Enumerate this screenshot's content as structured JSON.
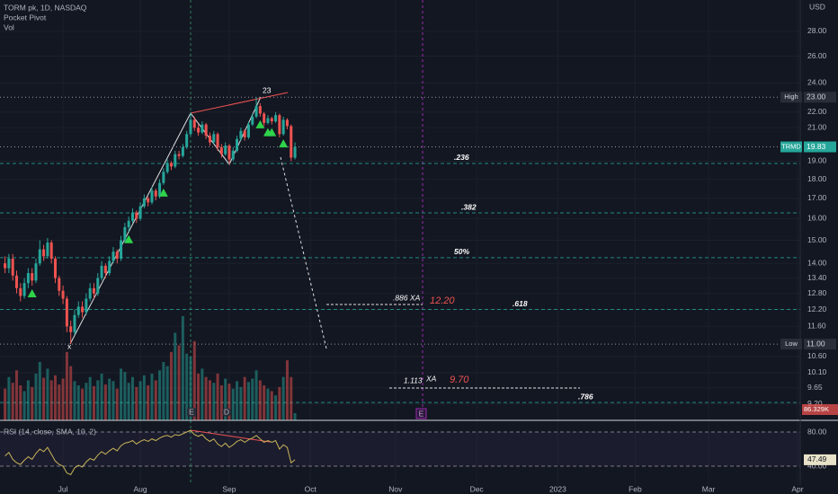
{
  "chart_data": {
    "type": "candlestick",
    "title": "TORM pk, 1D, NASDAQ",
    "subtitle": "Pocket Pivot",
    "volume_title": "Vol",
    "currency": "USD",
    "log_scale": true,
    "grid": true,
    "up_color": "#26a69a",
    "down_color": "#ef5350",
    "xlim": [
      -16.3,
      190.7
    ],
    "ylim": [
      8.76,
      30.75
    ],
    "xticks": [
      {
        "value": 0,
        "label": "Jul"
      },
      {
        "value": 20,
        "label": "Aug"
      },
      {
        "value": 43,
        "label": "Sep"
      },
      {
        "value": 64,
        "label": "Oct"
      },
      {
        "value": 86,
        "label": "Nov"
      },
      {
        "value": 107,
        "label": "Dec"
      },
      {
        "value": 128,
        "label": "2023"
      },
      {
        "value": 148,
        "label": "Feb"
      },
      {
        "value": 167,
        "label": "Mar"
      },
      {
        "value": 190,
        "label": "Apr"
      }
    ],
    "yticks": [
      {
        "value": 28,
        "label": "28.00"
      },
      {
        "value": 26,
        "label": "26.00"
      },
      {
        "value": 24,
        "label": "24.00"
      },
      {
        "value": 22,
        "label": "22.00"
      },
      {
        "value": 21,
        "label": "21.00"
      },
      {
        "value": 19,
        "label": "19.00"
      },
      {
        "value": 18,
        "label": "18.00"
      },
      {
        "value": 17,
        "label": "17.00"
      },
      {
        "value": 16,
        "label": "16.00"
      },
      {
        "value": 15,
        "label": "15.00"
      },
      {
        "value": 14,
        "label": "14.00"
      },
      {
        "value": 13.4,
        "label": "13.40"
      },
      {
        "value": 12.8,
        "label": "12.80"
      },
      {
        "value": 12.2,
        "label": "12.20"
      },
      {
        "value": 11.6,
        "label": "11.60"
      },
      {
        "value": 10.6,
        "label": "10.60"
      },
      {
        "value": 10.1,
        "label": "10.10"
      },
      {
        "value": 9.65,
        "label": "9.65"
      },
      {
        "value": 9.2,
        "label": "9.20"
      }
    ],
    "x": [
      -15,
      -14,
      -13,
      -12,
      -11,
      -10,
      -9,
      -8,
      -7,
      -6,
      -5,
      -4,
      -3,
      -2,
      -1,
      0,
      1,
      2,
      3,
      4,
      5,
      6,
      7,
      8,
      9,
      10,
      11,
      12,
      13,
      14,
      15,
      16,
      17,
      18,
      19,
      20,
      21,
      22,
      23,
      24,
      25,
      26,
      27,
      28,
      29,
      30,
      31,
      32,
      33,
      34,
      35,
      36,
      37,
      38,
      39,
      40,
      41,
      42,
      43,
      44,
      45,
      46,
      47,
      48,
      49,
      50,
      51,
      52,
      53,
      54,
      55,
      56,
      57,
      58,
      59,
      60
    ],
    "candles": [
      [
        14.0,
        14.3,
        13.6,
        13.8
      ],
      [
        13.8,
        14.4,
        13.6,
        14.2
      ],
      [
        14.2,
        14.4,
        13.3,
        13.5
      ],
      [
        13.5,
        13.7,
        12.8,
        13.0
      ],
      [
        13.0,
        13.2,
        12.5,
        12.7
      ],
      [
        12.7,
        13.4,
        12.6,
        13.2
      ],
      [
        13.2,
        13.8,
        13.0,
        13.6
      ],
      [
        13.6,
        13.8,
        13.1,
        13.3
      ],
      [
        13.3,
        14.2,
        13.2,
        14.0
      ],
      [
        14.0,
        15.0,
        13.9,
        14.6
      ],
      [
        14.6,
        14.8,
        14.1,
        14.3
      ],
      [
        14.3,
        15.1,
        14.2,
        14.9
      ],
      [
        14.9,
        15.0,
        14.0,
        14.2
      ],
      [
        14.2,
        14.3,
        13.2,
        13.4
      ],
      [
        13.4,
        13.5,
        12.7,
        12.9
      ],
      [
        12.9,
        13.1,
        12.4,
        12.6
      ],
      [
        12.6,
        12.7,
        11.4,
        11.6
      ],
      [
        11.6,
        11.8,
        11.0,
        11.4
      ],
      [
        11.4,
        12.2,
        11.3,
        12.0
      ],
      [
        12.0,
        12.5,
        11.9,
        12.3
      ],
      [
        12.3,
        12.5,
        11.9,
        12.1
      ],
      [
        12.1,
        12.8,
        12.0,
        12.6
      ],
      [
        12.6,
        13.2,
        12.5,
        13.0
      ],
      [
        13.0,
        13.2,
        12.6,
        12.8
      ],
      [
        12.8,
        13.6,
        12.7,
        13.4
      ],
      [
        13.4,
        14.1,
        13.3,
        13.9
      ],
      [
        13.9,
        14.0,
        13.4,
        13.6
      ],
      [
        13.6,
        14.3,
        13.5,
        14.1
      ],
      [
        14.1,
        14.7,
        14.0,
        14.5
      ],
      [
        14.5,
        14.6,
        14.0,
        14.2
      ],
      [
        14.2,
        15.2,
        14.1,
        15.0
      ],
      [
        15.0,
        15.8,
        14.9,
        15.6
      ],
      [
        15.6,
        16.1,
        15.4,
        15.9
      ],
      [
        15.9,
        16.5,
        15.8,
        16.3
      ],
      [
        16.3,
        16.4,
        15.8,
        16.0
      ],
      [
        16.0,
        16.8,
        15.9,
        16.6
      ],
      [
        16.6,
        17.2,
        16.5,
        17.0
      ],
      [
        17.0,
        17.1,
        16.6,
        16.8
      ],
      [
        16.8,
        17.6,
        16.7,
        17.4
      ],
      [
        17.4,
        17.5,
        16.9,
        17.1
      ],
      [
        17.1,
        18.0,
        17.0,
        17.8
      ],
      [
        17.8,
        18.6,
        17.7,
        18.4
      ],
      [
        18.4,
        19.1,
        18.3,
        18.9
      ],
      [
        18.9,
        19.0,
        18.5,
        18.7
      ],
      [
        18.7,
        19.6,
        18.6,
        19.4
      ],
      [
        19.4,
        19.6,
        19.1,
        19.3
      ],
      [
        19.3,
        20.0,
        19.2,
        19.8
      ],
      [
        19.8,
        20.8,
        19.7,
        20.6
      ],
      [
        20.6,
        22.0,
        20.5,
        21.5
      ],
      [
        21.5,
        21.7,
        20.8,
        21.0
      ],
      [
        21.0,
        21.2,
        20.5,
        20.7
      ],
      [
        20.7,
        21.4,
        20.6,
        21.2
      ],
      [
        21.2,
        21.3,
        20.3,
        20.5
      ],
      [
        20.5,
        20.7,
        19.9,
        20.1
      ],
      [
        20.1,
        20.8,
        20.0,
        20.6
      ],
      [
        20.6,
        20.7,
        19.6,
        19.8
      ],
      [
        19.8,
        20.0,
        19.2,
        19.4
      ],
      [
        19.4,
        20.1,
        19.3,
        19.9
      ],
      [
        19.9,
        20.0,
        18.8,
        19.1
      ],
      [
        19.1,
        19.8,
        19.0,
        19.6
      ],
      [
        19.6,
        20.5,
        19.5,
        20.3
      ],
      [
        20.3,
        21.0,
        20.2,
        20.8
      ],
      [
        20.8,
        20.9,
        20.2,
        20.4
      ],
      [
        20.4,
        21.4,
        20.3,
        21.2
      ],
      [
        21.2,
        21.9,
        21.1,
        21.7
      ],
      [
        21.7,
        23.0,
        21.6,
        22.4
      ],
      [
        22.4,
        22.6,
        21.7,
        21.9
      ],
      [
        21.9,
        22.0,
        21.1,
        21.3
      ],
      [
        21.3,
        21.8,
        21.2,
        21.6
      ],
      [
        21.6,
        21.7,
        21.2,
        21.4
      ],
      [
        21.4,
        22.0,
        21.3,
        21.8
      ],
      [
        21.8,
        21.9,
        20.4,
        20.6
      ],
      [
        20.6,
        21.7,
        20.5,
        21.5
      ],
      [
        21.5,
        21.6,
        20.9,
        21.1
      ],
      [
        21.1,
        21.2,
        19.0,
        19.2
      ],
      [
        19.2,
        20.1,
        19.1,
        19.83
      ]
    ],
    "volume_lim": [
      0,
      1400000
    ],
    "volume": [
      380000,
      520000,
      450000,
      600000,
      420000,
      350000,
      480000,
      400000,
      560000,
      700000,
      510000,
      620000,
      480000,
      540000,
      430000,
      500000,
      820000,
      650000,
      470000,
      420000,
      380000,
      450000,
      520000,
      410000,
      480000,
      560000,
      430000,
      500000,
      470000,
      380000,
      620000,
      580000,
      450000,
      520000,
      400000,
      470000,
      540000,
      420000,
      560000,
      480000,
      600000,
      700000,
      650000,
      820000,
      1050000,
      900000,
      1250000,
      800000,
      760000,
      950000,
      560000,
      620000,
      520000,
      480000,
      450000,
      560000,
      420000,
      500000,
      440000,
      380000,
      470000,
      400000,
      520000,
      460000,
      500000,
      600000,
      480000,
      420000,
      380000,
      350000,
      300000,
      400000,
      520000,
      720000,
      520000,
      86329
    ],
    "volume_label": "86.329K",
    "pocket_pivots": [
      -8,
      17,
      26,
      51,
      53,
      54,
      57
    ],
    "fib_levels": [
      {
        "label": ".236",
        "value": 18.87
      },
      {
        "label": ".382",
        "value": 16.28
      },
      {
        "label": "50%",
        "value": 14.24
      },
      {
        "label": ".618",
        "value": 12.2
      },
      {
        "label": ".786",
        "value": 9.24
      }
    ],
    "high": {
      "label": "High",
      "value": 23,
      "value_label": "23.00"
    },
    "low": {
      "label": "Low",
      "value": 11,
      "value_label": "11.00"
    },
    "last": {
      "label": "TRMD",
      "value": 19.83
    },
    "annotations": {
      "peak": "23",
      "x_point": "x",
      "xa_886": ".886 XA",
      "target_1": "12.20",
      "xa_1113": "1.113",
      "xa": "XA",
      "target_2": "9.70"
    },
    "events": [
      "E",
      "D",
      "E"
    ],
    "rsi": {
      "title": "RSI (14, close, SMA, 10, 2)",
      "color": "#7e57c2",
      "ylim": [
        17.9,
        91.6
      ],
      "yticks": [
        {
          "value": 80,
          "label": "80.00"
        },
        {
          "value": 40,
          "label": "40.00"
        }
      ],
      "values": [
        52,
        56,
        48,
        44,
        42,
        47,
        51,
        48,
        55,
        60,
        57,
        62,
        54,
        46,
        42,
        40,
        32,
        30,
        38,
        41,
        39,
        45,
        49,
        47,
        53,
        57,
        54,
        58,
        61,
        58,
        64,
        67,
        68,
        70,
        66,
        69,
        71,
        69,
        72,
        70,
        73,
        75,
        76,
        74,
        77,
        76,
        78,
        80,
        82,
        77,
        75,
        77,
        72,
        69,
        72,
        66,
        63,
        67,
        62,
        65,
        69,
        71,
        68,
        71,
        73,
        76,
        72,
        68,
        70,
        68,
        70,
        60,
        65,
        62,
        44,
        47.49
      ]
    }
  }
}
